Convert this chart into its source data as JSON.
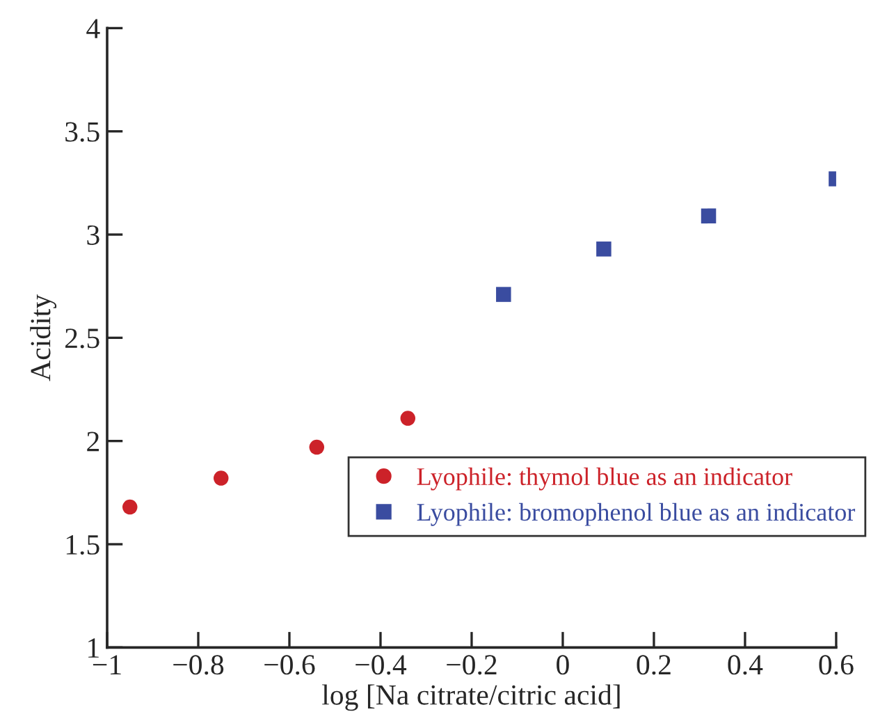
{
  "chart_data": {
    "type": "scatter",
    "xlabel": "log [Na citrate/citric acid]",
    "ylabel": "Acidity",
    "xlim": [
      -1,
      0.6
    ],
    "ylim": [
      1,
      4
    ],
    "xticks": [
      {
        "value": -1,
        "label": "−1"
      },
      {
        "value": -0.8,
        "label": "−0.8"
      },
      {
        "value": -0.6,
        "label": "−0.6"
      },
      {
        "value": -0.4,
        "label": "−0.4"
      },
      {
        "value": -0.2,
        "label": "−0.2"
      },
      0,
      0.2,
      0.4,
      0.6
    ],
    "yticks": [
      1,
      1.5,
      2,
      2.5,
      3,
      3.5,
      4
    ],
    "grid": false,
    "legend": "bottom right",
    "series": [
      {
        "name": "Lyophile: thymol blue as an indicator",
        "color": "#cc2229",
        "marker": "circle",
        "x": [
          -0.95,
          -0.75,
          -0.54,
          -0.34
        ],
        "values": [
          1.68,
          1.82,
          1.97,
          2.11
        ]
      },
      {
        "name": "Lyophile: bromophenol blue as an indicator",
        "color": "#3a4ca0",
        "marker": "square",
        "x": [
          -0.13,
          0.09,
          0.32,
          0.6
        ],
        "values": [
          2.71,
          2.93,
          3.09,
          3.27
        ]
      }
    ]
  }
}
